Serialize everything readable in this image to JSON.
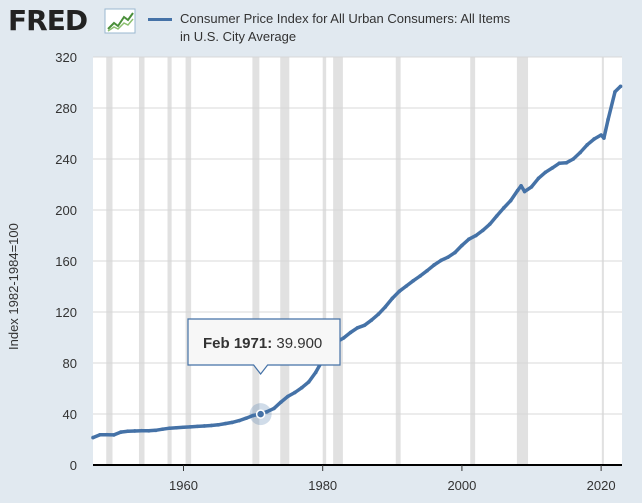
{
  "logo": {
    "text": "FRED",
    "mark": "chart-trend-icon"
  },
  "legend": {
    "label": "Consumer Price Index for All Urban Consumers: All Items in U.S. City Average",
    "line1": "Consumer Price Index for All Urban Consumers: All Items",
    "line2": "in U.S. City Average"
  },
  "colors": {
    "series": "#4572a7",
    "plot_bg": "#ffffff",
    "page_bg": "#e1e9f0",
    "recession": "#e1e1e1",
    "grid": "#d8d8d8"
  },
  "tooltip": {
    "label": "Feb 1971:",
    "value": "39.900"
  },
  "chart_data": {
    "type": "line",
    "title": "",
    "ylabel": "Index 1982-1984=100",
    "xlabel": "",
    "xlim": [
      1947,
      2023
    ],
    "ylim": [
      0,
      320
    ],
    "grid": "horizontal",
    "legend": "top",
    "x_ticks": [
      "1960",
      "1980",
      "2000",
      "2020"
    ],
    "y_ticks": [
      "0",
      "40",
      "80",
      "120",
      "160",
      "200",
      "240",
      "280",
      "320"
    ],
    "recessions": [
      [
        1948.9,
        1949.8
      ],
      [
        1953.6,
        1954.4
      ],
      [
        1957.7,
        1958.3
      ],
      [
        1960.3,
        1961.1
      ],
      [
        1969.9,
        1970.9
      ],
      [
        1973.9,
        1975.2
      ],
      [
        1980.0,
        1980.5
      ],
      [
        1981.5,
        1982.9
      ],
      [
        1990.5,
        1991.2
      ],
      [
        2001.2,
        2001.9
      ],
      [
        2007.9,
        2009.5
      ],
      [
        2020.1,
        2020.4
      ]
    ],
    "series": [
      {
        "name": "Consumer Price Index for All Urban Consumers: All Items in U.S. City Average",
        "x": [
          1947,
          1948,
          1949,
          1950,
          1951,
          1952,
          1953,
          1954,
          1955,
          1956,
          1957,
          1958,
          1959,
          1960,
          1961,
          1962,
          1963,
          1964,
          1965,
          1966,
          1967,
          1968,
          1969,
          1970,
          1971,
          1972,
          1973,
          1974,
          1975,
          1976,
          1977,
          1978,
          1979,
          1980,
          1981,
          1982,
          1983,
          1984,
          1985,
          1986,
          1987,
          1988,
          1989,
          1990,
          1991,
          1992,
          1993,
          1994,
          1995,
          1996,
          1997,
          1998,
          1999,
          2000,
          2001,
          2002,
          2003,
          2004,
          2005,
          2006,
          2007,
          2008,
          2008.5,
          2009,
          2010,
          2011,
          2012,
          2013,
          2014,
          2015,
          2016,
          2017,
          2018,
          2019,
          2020,
          2020.4,
          2021,
          2022,
          2022.8
        ],
        "values": [
          21.5,
          23.7,
          23.8,
          23.6,
          25.8,
          26.5,
          26.7,
          26.9,
          26.8,
          27.2,
          28.1,
          28.9,
          29.2,
          29.6,
          29.9,
          30.3,
          30.6,
          31.0,
          31.5,
          32.5,
          33.4,
          34.8,
          36.7,
          38.8,
          39.9,
          41.8,
          44.4,
          49.3,
          53.8,
          56.9,
          60.6,
          65.2,
          72.6,
          82.4,
          90.9,
          96.5,
          99.6,
          103.9,
          107.6,
          109.6,
          113.6,
          118.3,
          124.0,
          130.7,
          136.2,
          140.3,
          144.5,
          148.2,
          152.4,
          156.9,
          160.5,
          163.0,
          166.6,
          172.2,
          177.1,
          179.9,
          184.0,
          188.9,
          195.3,
          201.6,
          207.3,
          215.3,
          219.0,
          214.5,
          218.1,
          224.9,
          229.6,
          233.0,
          236.7,
          237.0,
          240.0,
          245.1,
          251.1,
          255.7,
          258.8,
          256.4,
          271.0,
          292.7,
          297.0
        ]
      }
    ]
  }
}
